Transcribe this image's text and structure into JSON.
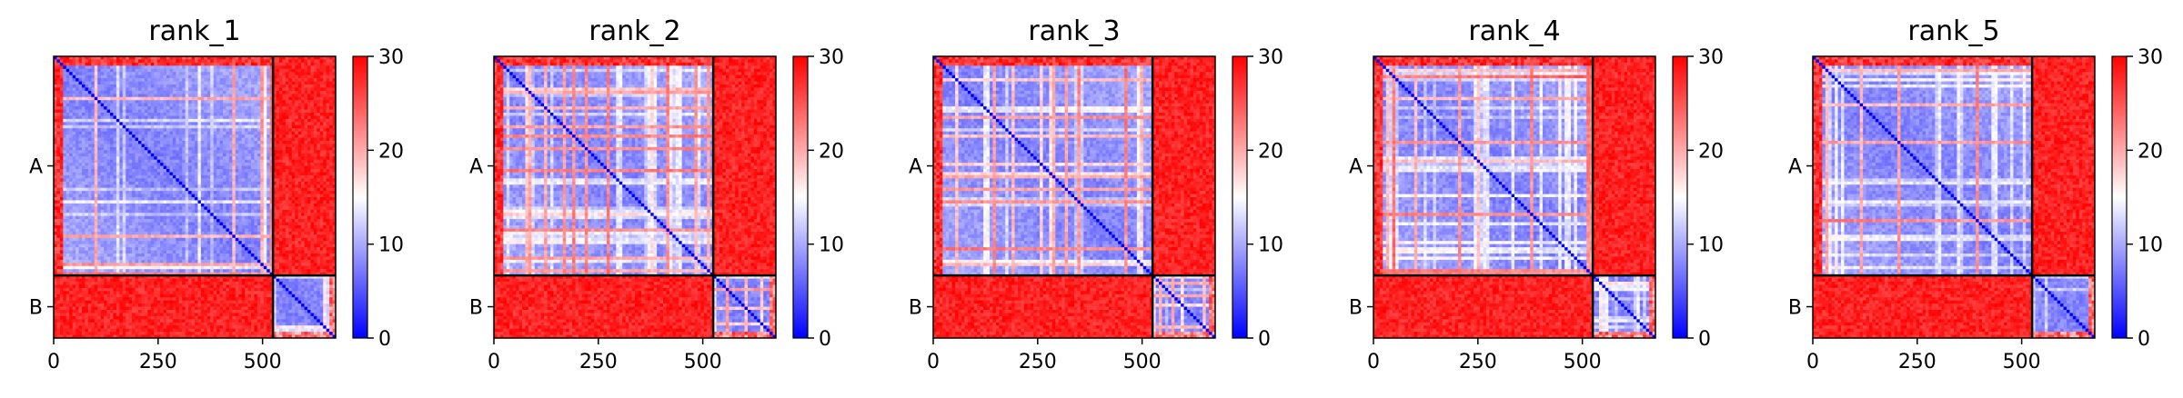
{
  "chart_data": [
    {
      "type": "heatmap",
      "title": "rank_1",
      "x_ticks": [
        0,
        250,
        500
      ],
      "y_tick_labels": [
        "A",
        "B"
      ],
      "chain_lengths": {
        "A": 525,
        "B": 150
      },
      "total_length": 675,
      "colorbar": {
        "min": 0,
        "max": 30,
        "ticks": [
          0,
          10,
          20,
          30
        ],
        "colors": [
          "#0000ff",
          "#ffffff",
          "#ff0000"
        ]
      },
      "inter_chain_mean": 30,
      "intra_chain_mean": 6
    },
    {
      "type": "heatmap",
      "title": "rank_2",
      "x_ticks": [
        0,
        250,
        500
      ],
      "y_tick_labels": [
        "A",
        "B"
      ],
      "chain_lengths": {
        "A": 525,
        "B": 150
      },
      "total_length": 675,
      "colorbar": {
        "min": 0,
        "max": 30,
        "ticks": [
          0,
          10,
          20,
          30
        ],
        "colors": [
          "#0000ff",
          "#ffffff",
          "#ff0000"
        ]
      },
      "inter_chain_mean": 30,
      "intra_chain_mean": 6
    },
    {
      "type": "heatmap",
      "title": "rank_3",
      "x_ticks": [
        0,
        250,
        500
      ],
      "y_tick_labels": [
        "A",
        "B"
      ],
      "chain_lengths": {
        "A": 525,
        "B": 150
      },
      "total_length": 675,
      "colorbar": {
        "min": 0,
        "max": 30,
        "ticks": [
          0,
          10,
          20,
          30
        ],
        "colors": [
          "#0000ff",
          "#ffffff",
          "#ff0000"
        ]
      },
      "inter_chain_mean": 30,
      "intra_chain_mean": 6
    },
    {
      "type": "heatmap",
      "title": "rank_4",
      "x_ticks": [
        0,
        250,
        500
      ],
      "y_tick_labels": [
        "A",
        "B"
      ],
      "chain_lengths": {
        "A": 525,
        "B": 150
      },
      "total_length": 675,
      "colorbar": {
        "min": 0,
        "max": 30,
        "ticks": [
          0,
          10,
          20,
          30
        ],
        "colors": [
          "#0000ff",
          "#ffffff",
          "#ff0000"
        ]
      },
      "inter_chain_mean": 30,
      "intra_chain_mean": 6
    },
    {
      "type": "heatmap",
      "title": "rank_5",
      "x_ticks": [
        0,
        250,
        500
      ],
      "y_tick_labels": [
        "A",
        "B"
      ],
      "chain_lengths": {
        "A": 525,
        "B": 150
      },
      "total_length": 675,
      "colorbar": {
        "min": 0,
        "max": 30,
        "ticks": [
          0,
          10,
          20,
          30
        ],
        "colors": [
          "#0000ff",
          "#ffffff",
          "#ff0000"
        ]
      },
      "inter_chain_mean": 30,
      "intra_chain_mean": 6
    }
  ]
}
